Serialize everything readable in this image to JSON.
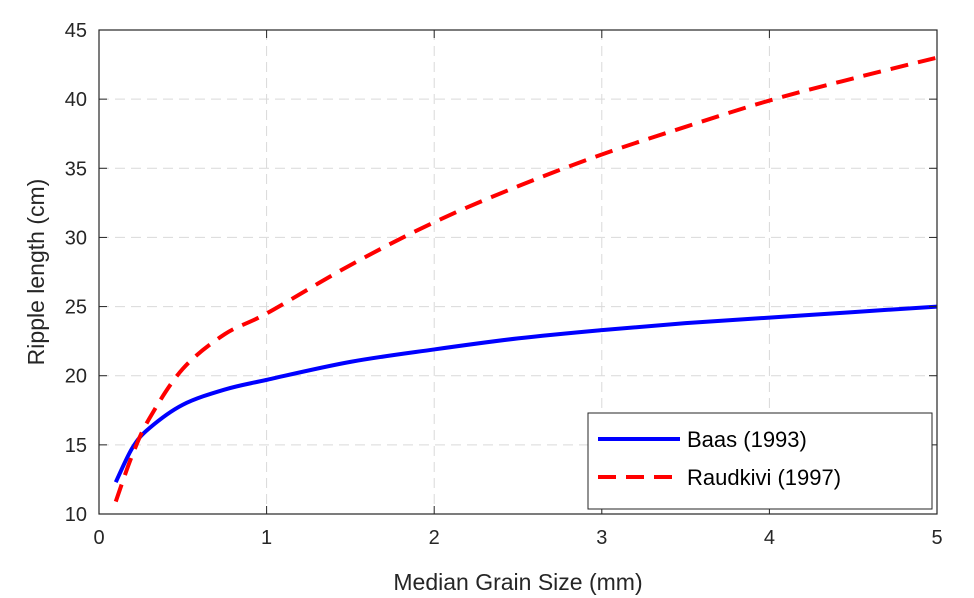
{
  "chart_data": {
    "type": "line",
    "xlabel": "Median Grain Size (mm)",
    "ylabel": "Ripple length (cm)",
    "xlim": [
      0,
      5
    ],
    "ylim": [
      10,
      45
    ],
    "xticks": [
      "0",
      "1",
      "2",
      "3",
      "4",
      "5"
    ],
    "yticks": [
      "10",
      "15",
      "20",
      "25",
      "30",
      "35",
      "40",
      "45"
    ],
    "grid": true,
    "legend_position": "bottom-right",
    "series": [
      {
        "name": "Baas (1993)",
        "color": "#0000ff",
        "style": "solid",
        "x": [
          0.1,
          0.2,
          0.3,
          0.5,
          0.75,
          1,
          1.5,
          2,
          2.5,
          3,
          3.5,
          4,
          4.5,
          5
        ],
        "y": [
          12.3,
          14.8,
          16.2,
          17.9,
          19.0,
          19.7,
          21.0,
          21.9,
          22.7,
          23.3,
          23.8,
          24.2,
          24.6,
          25.0
        ]
      },
      {
        "name": "Raudkivi (1997)",
        "color": "#ff0000",
        "style": "dashed",
        "x": [
          0.1,
          0.2,
          0.3,
          0.5,
          0.75,
          1,
          1.5,
          2,
          2.5,
          3,
          3.5,
          4,
          4.5,
          5
        ],
        "y": [
          10.9,
          14.3,
          16.9,
          20.5,
          23.0,
          24.5,
          28.0,
          31.1,
          33.7,
          36.0,
          38.0,
          39.9,
          41.5,
          43.0
        ]
      }
    ]
  }
}
